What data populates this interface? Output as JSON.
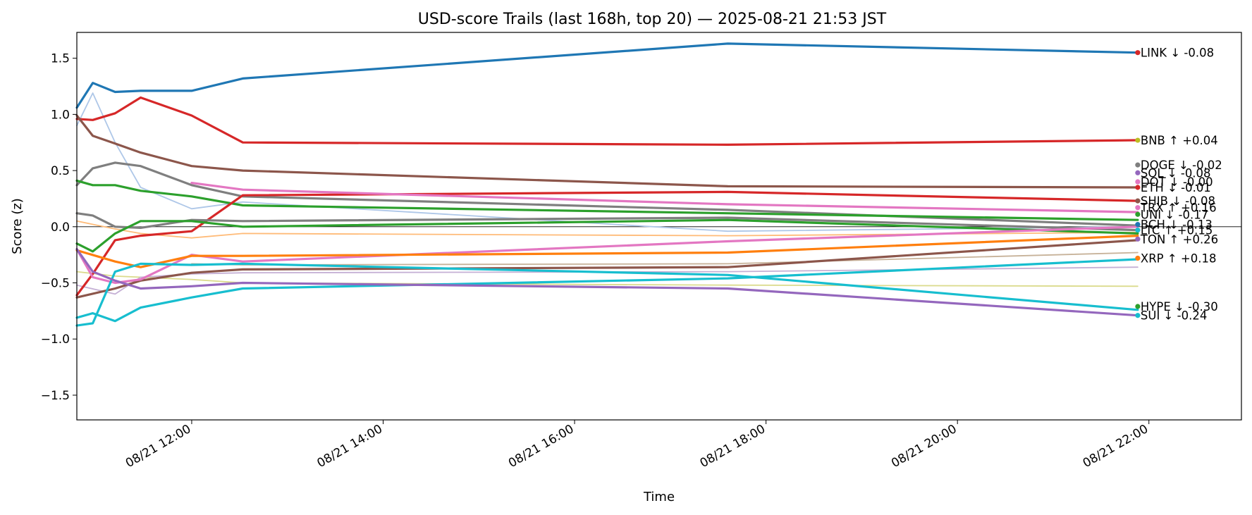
{
  "chart_data": {
    "type": "line",
    "title": "USD-score Trails (last 168h, top 20) — 2025-08-21 21:53 JST",
    "xlabel": "Time",
    "ylabel": "Score (z)",
    "xlim": [
      "08/21 10:48",
      "08/21 22:58"
    ],
    "ylim": [
      -1.72,
      1.73
    ],
    "y_ticks": [
      -1.5,
      -1.0,
      -0.5,
      0.0,
      0.5,
      1.0,
      1.5
    ],
    "y_tick_labels": [
      "−1.5",
      "−1.0",
      "−0.5",
      "0.0",
      "0.5",
      "1.0",
      "1.5"
    ],
    "x_ticks": [
      "08/21 12:00",
      "08/21 14:00",
      "08/21 16:00",
      "08/21 18:00",
      "08/21 20:00",
      "08/21 22:00"
    ],
    "zero_line": true,
    "grid": false,
    "legend": "none",
    "series": [
      {
        "color": "#1f77b4",
        "width": 3.2,
        "x": [
          "08/21 10:48",
          "08/21 10:58",
          "08/21 11:12",
          "08/21 11:28",
          "08/21 12:00",
          "08/21 12:32",
          "08/21 17:36",
          "08/21 21:53"
        ],
        "y": [
          1.06,
          1.28,
          1.2,
          1.21,
          1.21,
          1.32,
          1.63,
          1.55
        ]
      },
      {
        "color": "#d62728",
        "width": 3.2,
        "x": [
          "08/21 10:48",
          "08/21 10:58",
          "08/21 11:12",
          "08/21 11:28",
          "08/21 12:00",
          "08/21 12:32",
          "08/21 17:36",
          "08/21 21:53"
        ],
        "y": [
          0.96,
          0.95,
          1.01,
          1.15,
          0.99,
          0.75,
          0.73,
          0.77
        ]
      },
      {
        "color": "#8c564b",
        "width": 3.2,
        "x": [
          "08/21 10:48",
          "08/21 10:58",
          "08/21 11:12",
          "08/21 11:28",
          "08/21 12:00",
          "08/21 12:32",
          "08/21 17:36",
          "08/21 21:53"
        ],
        "y": [
          0.99,
          0.81,
          0.74,
          0.66,
          0.54,
          0.5,
          0.36,
          0.35
        ]
      },
      {
        "color": "#7f7f7f",
        "width": 3.2,
        "x": [
          "08/21 10:48",
          "08/21 10:58",
          "08/21 11:12",
          "08/21 11:28",
          "08/21 12:00",
          "08/21 12:32",
          "08/21 17:36",
          "08/21 21:53"
        ],
        "y": [
          0.37,
          0.52,
          0.57,
          0.54,
          0.37,
          0.27,
          0.15,
          0.01
        ]
      },
      {
        "color": "#2ca02c",
        "width": 3.2,
        "x": [
          "08/21 10:48",
          "08/21 10:58",
          "08/21 11:12",
          "08/21 11:28",
          "08/21 12:00",
          "08/21 12:32",
          "08/21 17:36",
          "08/21 21:53"
        ],
        "y": [
          0.41,
          0.37,
          0.37,
          0.32,
          0.27,
          0.19,
          0.12,
          0.06
        ]
      },
      {
        "color": "#d62728",
        "width": 3.2,
        "x": [
          "08/21 10:48",
          "08/21 10:58",
          "08/21 11:12",
          "08/21 11:28",
          "08/21 12:00",
          "08/21 12:32",
          "08/21 17:36",
          "08/21 21:53"
        ],
        "y": [
          -0.61,
          -0.42,
          -0.12,
          -0.08,
          -0.04,
          0.28,
          0.31,
          0.23
        ]
      },
      {
        "color": "#e377c2",
        "width": 3.2,
        "x": [
          "08/21 12:00",
          "08/21 12:32",
          "08/21 17:36",
          "08/21 21:53"
        ],
        "y": [
          0.39,
          0.33,
          0.2,
          0.13
        ]
      },
      {
        "color": "#8c564b",
        "width": 3.2,
        "x": [
          "08/21 10:48",
          "08/21 11:12",
          "08/21 11:28",
          "08/21 12:00",
          "08/21 12:32",
          "08/21 17:36",
          "08/21 21:53"
        ],
        "y": [
          -0.63,
          -0.55,
          -0.48,
          -0.41,
          -0.38,
          -0.36,
          -0.12
        ]
      },
      {
        "color": "#7f7f7f",
        "width": 3.2,
        "x": [
          "08/21 10:48",
          "08/21 10:58",
          "08/21 11:12",
          "08/21 11:28",
          "08/21 12:00",
          "08/21 12:32",
          "08/21 17:36",
          "08/21 21:53"
        ],
        "y": [
          0.12,
          0.1,
          0.0,
          -0.01,
          0.06,
          0.05,
          0.08,
          -0.03
        ]
      },
      {
        "color": "#2ca02c",
        "width": 3.2,
        "x": [
          "08/21 10:48",
          "08/21 10:58",
          "08/21 11:12",
          "08/21 11:28",
          "08/21 12:00",
          "08/21 12:32",
          "08/21 17:36",
          "08/21 21:53"
        ],
        "y": [
          -0.15,
          -0.22,
          -0.06,
          0.05,
          0.05,
          0.0,
          0.06,
          -0.06
        ]
      },
      {
        "color": "#e377c2",
        "width": 3.2,
        "x": [
          "08/21 10:48",
          "08/21 10:58",
          "08/21 11:12",
          "08/21 11:28",
          "08/21 12:00",
          "08/21 12:32",
          "08/21 17:36",
          "08/21 21:53"
        ],
        "y": [
          -0.2,
          -0.45,
          -0.5,
          -0.47,
          -0.25,
          -0.31,
          -0.13,
          0.0
        ]
      },
      {
        "color": "#ff7f0e",
        "width": 3.2,
        "x": [
          "08/21 10:48",
          "08/21 11:12",
          "08/21 11:28",
          "08/21 12:00",
          "08/21 12:32",
          "08/21 17:36",
          "08/21 21:53"
        ],
        "y": [
          -0.21,
          -0.31,
          -0.36,
          -0.26,
          -0.26,
          -0.23,
          -0.08
        ]
      },
      {
        "color": "#17becf",
        "width": 3.2,
        "x": [
          "08/21 10:48",
          "08/21 10:58",
          "08/21 11:12",
          "08/21 11:28",
          "08/21 12:00",
          "08/21 12:32",
          "08/21 17:36",
          "08/21 21:53"
        ],
        "y": [
          -0.81,
          -0.77,
          -0.84,
          -0.72,
          -0.63,
          -0.55,
          -0.46,
          -0.29
        ]
      },
      {
        "color": "#17becf",
        "width": 3.2,
        "x": [
          "08/21 10:48",
          "08/21 10:58",
          "08/21 11:12",
          "08/21 11:28",
          "08/21 12:00",
          "08/21 12:32",
          "08/21 17:36",
          "08/21 21:53"
        ],
        "y": [
          -0.88,
          -0.86,
          -0.4,
          -0.33,
          -0.34,
          -0.33,
          -0.43,
          -0.74
        ]
      },
      {
        "color": "#9467bd",
        "width": 3.2,
        "x": [
          "08/21 10:48",
          "08/21 10:58",
          "08/21 11:12",
          "08/21 11:28",
          "08/21 12:00",
          "08/21 12:32",
          "08/21 17:36",
          "08/21 21:53"
        ],
        "y": [
          -0.2,
          -0.4,
          -0.48,
          -0.55,
          -0.53,
          -0.5,
          -0.55,
          -0.79
        ]
      },
      {
        "color": "#aec7e8",
        "width": 1.8,
        "x": [
          "08/21 10:48",
          "08/21 10:58",
          "08/21 11:12",
          "08/21 11:28",
          "08/21 12:00",
          "08/21 12:32",
          "08/21 17:36",
          "08/21 21:53"
        ],
        "y": [
          0.9,
          1.19,
          0.75,
          0.35,
          0.16,
          0.22,
          -0.04,
          0.0
        ]
      },
      {
        "color": "#ffbb78",
        "width": 1.8,
        "x": [
          "08/21 10:48",
          "08/21 11:12",
          "08/21 11:28",
          "08/21 12:00",
          "08/21 12:32",
          "08/21 17:36",
          "08/21 21:53"
        ],
        "y": [
          0.05,
          -0.02,
          -0.06,
          -0.1,
          -0.06,
          -0.08,
          -0.05
        ]
      },
      {
        "color": "#dbdb8d",
        "width": 1.8,
        "x": [
          "08/21 10:48",
          "08/21 11:12",
          "08/21 12:00",
          "08/21 12:32",
          "08/21 17:36",
          "08/21 21:53"
        ],
        "y": [
          -0.4,
          -0.44,
          -0.47,
          -0.5,
          -0.52,
          -0.53
        ]
      },
      {
        "color": "#c5b0d5",
        "width": 1.8,
        "x": [
          "08/21 10:48",
          "08/21 11:12",
          "08/21 11:28",
          "08/21 12:00",
          "08/21 12:32",
          "08/21 17:36",
          "08/21 21:53"
        ],
        "y": [
          -0.52,
          -0.6,
          -0.45,
          -0.42,
          -0.41,
          -0.4,
          -0.36
        ]
      },
      {
        "color": "#c7b299",
        "width": 1.8,
        "x": [
          "08/21 12:00",
          "08/21 12:32",
          "08/21 17:36",
          "08/21 21:53"
        ],
        "y": [
          -0.33,
          -0.34,
          -0.33,
          -0.23
        ]
      }
    ],
    "end_labels": [
      {
        "text": "LINK ↓ -0.08",
        "y": 1.55,
        "color": "#d62728"
      },
      {
        "text": "BNB ↑ +0.04",
        "y": 0.77,
        "color": "#bcbd22"
      },
      {
        "text": "DOGE ↓ -0.02",
        "y": 0.55,
        "color": "#7f7f7f"
      },
      {
        "text": "SOL ↓ -0.08",
        "y": 0.48,
        "color": "#9467bd"
      },
      {
        "text": "DOT ↓ -0.00",
        "y": 0.4,
        "color": "#e377c2"
      },
      {
        "text": "ETH ↓ -0.01",
        "y": 0.35,
        "color": "#d62728"
      },
      {
        "text": "SHIB ↓ -0.08",
        "y": 0.23,
        "color": "#8c564b"
      },
      {
        "text": "TRX ↑ +0.16",
        "y": 0.17,
        "color": "#e377c2"
      },
      {
        "text": "UNI ↓ -0.17",
        "y": 0.11,
        "color": "#2ca02c"
      },
      {
        "text": "BCH ↓ -0.13",
        "y": 0.02,
        "color": "#1f77b4"
      },
      {
        "text": "LTC ↑ +0.15",
        "y": -0.03,
        "color": "#17becf"
      },
      {
        "text": "TON ↑ +0.26",
        "y": -0.11,
        "color": "#9467bd"
      },
      {
        "text": "XRP ↑ +0.18",
        "y": -0.28,
        "color": "#ff7f0e"
      },
      {
        "text": "HYPE ↓ -0.30",
        "y": -0.71,
        "color": "#2ca02c"
      },
      {
        "text": "SUI ↓ -0.24",
        "y": -0.79,
        "color": "#17becf"
      }
    ]
  }
}
